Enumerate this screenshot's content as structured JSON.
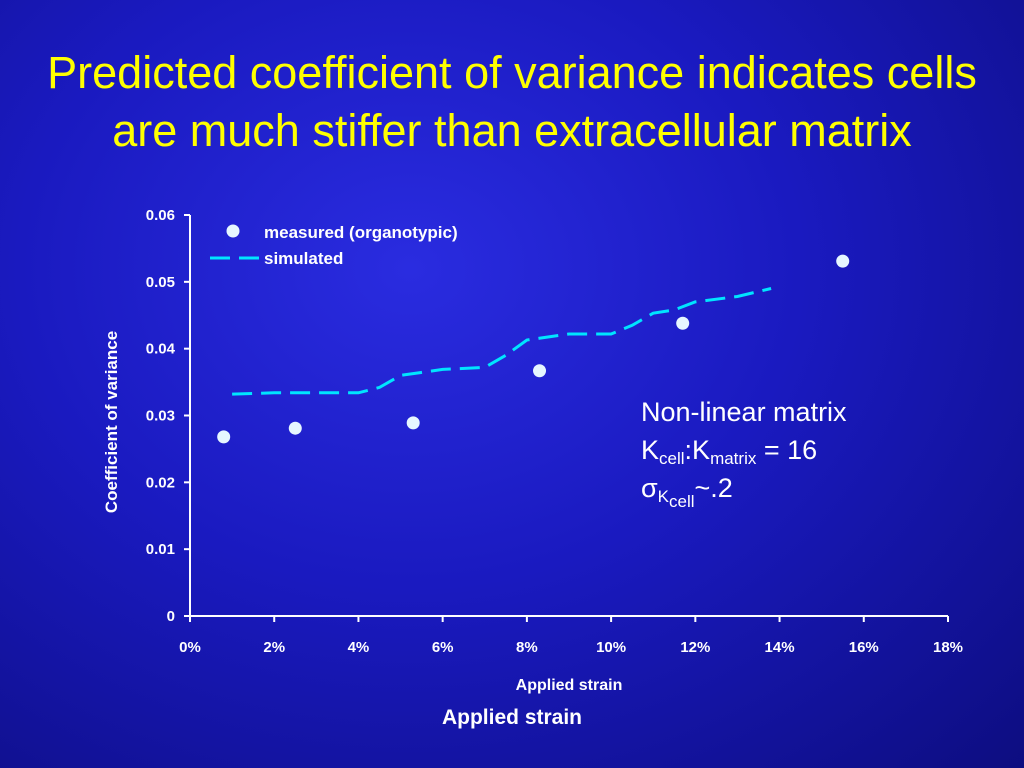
{
  "slide": {
    "title": "Predicted coefficient of variance indicates cells are much stiffer than extracellular matrix",
    "annotation": {
      "line1": "Non-linear matrix",
      "k_letter": "K",
      "k_cell_sub": "cell",
      "colon": ":",
      "k2_letter": "K",
      "k_matrix_sub": "matrix",
      "equals": " = 16",
      "sigma": "σ",
      "sigma_k_letter": "K",
      "sigma_k_sub": "cell",
      "approx": "~.2"
    },
    "slide_xlabel": "Applied strain"
  },
  "colors": {
    "title": "#ffff00",
    "measured_marker": "#e6f7ff",
    "simulated_line": "#00e5ff",
    "axis": "#ffffff"
  },
  "chart_data": {
    "type": "scatter",
    "title": "",
    "xlabel": "Applied strain",
    "ylabel": "Coefficient of variance",
    "xlim": [
      0,
      0.18
    ],
    "ylim": [
      0,
      0.06
    ],
    "x_ticks": [
      0,
      0.02,
      0.04,
      0.06,
      0.08,
      0.1,
      0.12,
      0.14,
      0.16,
      0.18
    ],
    "x_tick_labels": [
      "0%",
      "2%",
      "4%",
      "6%",
      "8%",
      "10%",
      "12%",
      "14%",
      "16%",
      "18%"
    ],
    "y_ticks": [
      0,
      0.01,
      0.02,
      0.03,
      0.04,
      0.05,
      0.06
    ],
    "y_tick_labels": [
      "0",
      "0.01",
      "0.02",
      "0.03",
      "0.04",
      "0.05",
      "0.06"
    ],
    "grid": false,
    "legend_position": "top-left",
    "series": [
      {
        "name": "measured (organotypic)",
        "kind": "markers",
        "x": [
          0.008,
          0.025,
          0.053,
          0.083,
          0.117,
          0.155
        ],
        "y": [
          0.0268,
          0.0281,
          0.0289,
          0.0367,
          0.0438,
          0.0531
        ]
      },
      {
        "name": "simulated",
        "kind": "dashed-line",
        "x": [
          0.01,
          0.02,
          0.04,
          0.045,
          0.05,
          0.06,
          0.07,
          0.075,
          0.08,
          0.09,
          0.1,
          0.105,
          0.11,
          0.115,
          0.12,
          0.13,
          0.138
        ],
        "y": [
          0.0332,
          0.0334,
          0.0334,
          0.0342,
          0.036,
          0.0369,
          0.0372,
          0.039,
          0.0413,
          0.0422,
          0.0422,
          0.0435,
          0.0453,
          0.0458,
          0.047,
          0.0478,
          0.049
        ]
      }
    ]
  }
}
